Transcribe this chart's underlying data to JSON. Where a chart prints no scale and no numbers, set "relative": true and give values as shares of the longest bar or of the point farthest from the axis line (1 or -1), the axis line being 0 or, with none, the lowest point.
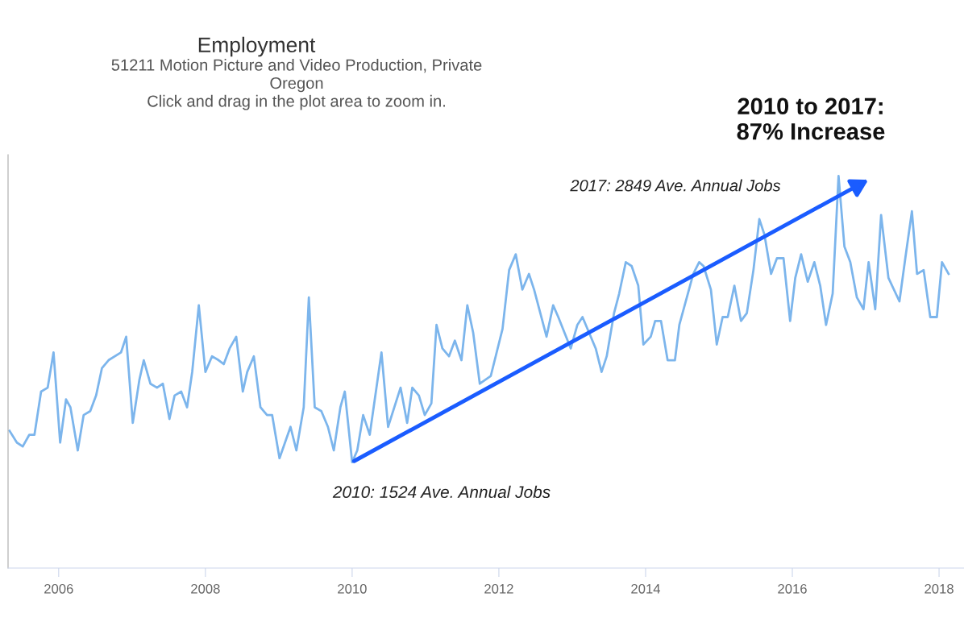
{
  "chart_data": {
    "type": "line",
    "title": "Employment",
    "subtitle": "51211 Motion Picture and Video Production, Private\nOregon\nClick and drag in the plot area to zoom in.",
    "relative": true,
    "xlim": [
      2005.31,
      2018.34
    ],
    "xticks": [
      2006,
      2008,
      2010,
      2012,
      2014,
      2016,
      2018
    ],
    "series": [
      {
        "color": "#7cb5ec",
        "x": [
          2005.33,
          2005.43,
          2005.51,
          2005.6,
          2005.67,
          2005.76,
          2005.85,
          2005.93,
          2006.02,
          2006.1,
          2006.16,
          2006.26,
          2006.34,
          2006.43,
          2006.51,
          2006.59,
          2006.68,
          2006.85,
          2006.92,
          2007.01,
          2007.1,
          2007.16,
          2007.25,
          2007.34,
          2007.42,
          2007.51,
          2007.58,
          2007.67,
          2007.75,
          2007.82,
          2007.91,
          2008.0,
          2008.09,
          2008.18,
          2008.25,
          2008.33,
          2008.42,
          2008.51,
          2008.57,
          2008.66,
          2008.75,
          2008.84,
          2008.91,
          2009.01,
          2009.16,
          2009.24,
          2009.34,
          2009.41,
          2009.49,
          2009.58,
          2009.67,
          2009.75,
          2009.84,
          2009.9,
          2010.0,
          2010.07,
          2010.15,
          2010.24,
          2010.4,
          2010.49,
          2010.66,
          2010.75,
          2010.82,
          2010.91,
          2010.99,
          2011.08,
          2011.15,
          2011.23,
          2011.32,
          2011.4,
          2011.49,
          2011.57,
          2011.65,
          2011.74,
          2011.89,
          2012.05,
          2012.14,
          2012.23,
          2012.32,
          2012.41,
          2012.48,
          2012.65,
          2012.74,
          2012.81,
          2012.98,
          2013.07,
          2013.14,
          2013.32,
          2013.4,
          2013.47,
          2013.57,
          2013.64,
          2013.73,
          2013.81,
          2013.9,
          2013.97,
          2014.07,
          2014.13,
          2014.21,
          2014.3,
          2014.4,
          2014.46,
          2014.65,
          2014.73,
          2014.79,
          2014.89,
          2014.97,
          2015.05,
          2015.12,
          2015.21,
          2015.3,
          2015.38,
          2015.47,
          2015.55,
          2015.62,
          2015.71,
          2015.79,
          2015.88,
          2015.97,
          2016.04,
          2016.12,
          2016.21,
          2016.3,
          2016.38,
          2016.46,
          2016.55,
          2016.63,
          2016.71,
          2016.79,
          2016.88,
          2016.97,
          2017.04,
          2017.13,
          2017.21,
          2017.31,
          2017.46,
          2017.54,
          2017.63,
          2017.7,
          2017.79,
          2017.88,
          2017.97,
          2018.04,
          2018.13
        ],
        "values": [
          0.35,
          0.32,
          0.31,
          0.34,
          0.34,
          0.45,
          0.46,
          0.55,
          0.32,
          0.43,
          0.41,
          0.3,
          0.39,
          0.4,
          0.44,
          0.51,
          0.53,
          0.55,
          0.59,
          0.37,
          0.48,
          0.53,
          0.47,
          0.46,
          0.47,
          0.38,
          0.44,
          0.45,
          0.41,
          0.5,
          0.67,
          0.5,
          0.54,
          0.53,
          0.52,
          0.56,
          0.59,
          0.45,
          0.5,
          0.54,
          0.41,
          0.39,
          0.39,
          0.28,
          0.36,
          0.3,
          0.41,
          0.69,
          0.41,
          0.4,
          0.36,
          0.3,
          0.41,
          0.45,
          0.27,
          0.3,
          0.39,
          0.34,
          0.55,
          0.36,
          0.46,
          0.37,
          0.46,
          0.44,
          0.39,
          0.42,
          0.62,
          0.56,
          0.54,
          0.58,
          0.53,
          0.67,
          0.6,
          0.47,
          0.49,
          0.61,
          0.76,
          0.8,
          0.71,
          0.75,
          0.71,
          0.59,
          0.67,
          0.64,
          0.56,
          0.62,
          0.64,
          0.56,
          0.5,
          0.54,
          0.65,
          0.7,
          0.78,
          0.77,
          0.72,
          0.57,
          0.59,
          0.63,
          0.63,
          0.53,
          0.53,
          0.62,
          0.75,
          0.78,
          0.77,
          0.71,
          0.57,
          0.64,
          0.64,
          0.72,
          0.63,
          0.65,
          0.76,
          0.89,
          0.85,
          0.75,
          0.79,
          0.79,
          0.63,
          0.74,
          0.8,
          0.73,
          0.78,
          0.72,
          0.62,
          0.7,
          1.0,
          0.82,
          0.78,
          0.69,
          0.66,
          0.78,
          0.66,
          0.9,
          0.74,
          0.68,
          0.79,
          0.91,
          0.75,
          0.76,
          0.64,
          0.64,
          0.78,
          0.75
        ]
      }
    ],
    "annotations": [
      {
        "text": "2010: 1524 Ave. Annual Jobs",
        "x": 2010.0,
        "y": 0.27
      },
      "2017: 2849 Ave. Annual Jobs",
      "2010 to 2017:\n87% Increase"
    ]
  }
}
